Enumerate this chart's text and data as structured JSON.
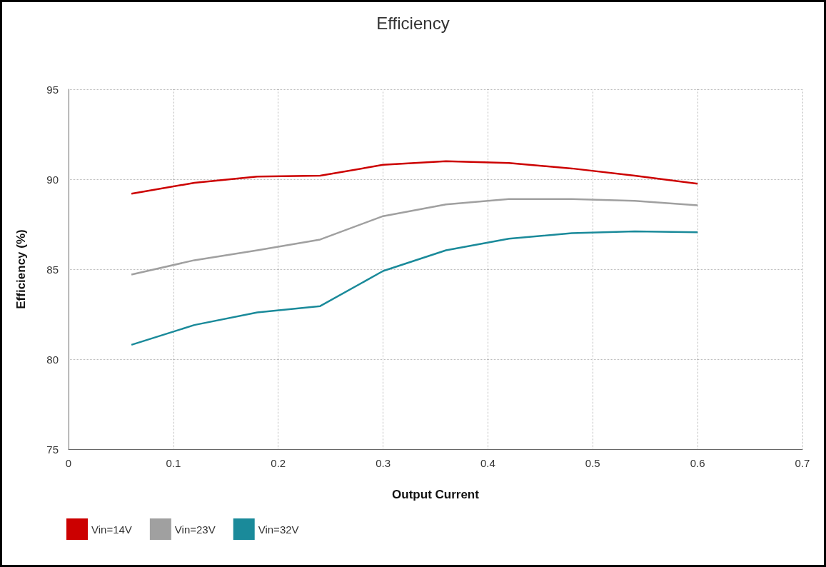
{
  "chart_data": {
    "type": "line",
    "title": "Efficiency",
    "xlabel": "Output Current",
    "ylabel": "Efficiency (%)",
    "x": [
      0.06,
      0.12,
      0.18,
      0.24,
      0.3,
      0.36,
      0.42,
      0.48,
      0.54,
      0.6
    ],
    "series": [
      {
        "name": "Vin=14V",
        "color": "#cc0000",
        "values": [
          89.2,
          89.8,
          90.15,
          90.2,
          90.8,
          91.0,
          90.9,
          90.6,
          90.2,
          89.75
        ]
      },
      {
        "name": "Vin=23V",
        "color": "#a0a0a0",
        "values": [
          84.7,
          85.5,
          86.05,
          86.65,
          87.95,
          88.6,
          88.9,
          88.9,
          88.8,
          88.55
        ]
      },
      {
        "name": "Vin=32V",
        "color": "#1a8a9a",
        "values": [
          80.8,
          81.9,
          82.6,
          82.95,
          84.9,
          86.05,
          86.7,
          87.0,
          87.1,
          87.05
        ]
      }
    ],
    "xlim": [
      0,
      0.7
    ],
    "xticks": [
      0,
      0.1,
      0.2,
      0.3,
      0.4,
      0.5,
      0.6,
      0.7
    ],
    "ylim": [
      75,
      95
    ],
    "yticks": [
      75,
      80,
      85,
      90,
      95
    ],
    "grid": true,
    "legend": "bottom left",
    "marker": "none",
    "line_style": "solid"
  }
}
